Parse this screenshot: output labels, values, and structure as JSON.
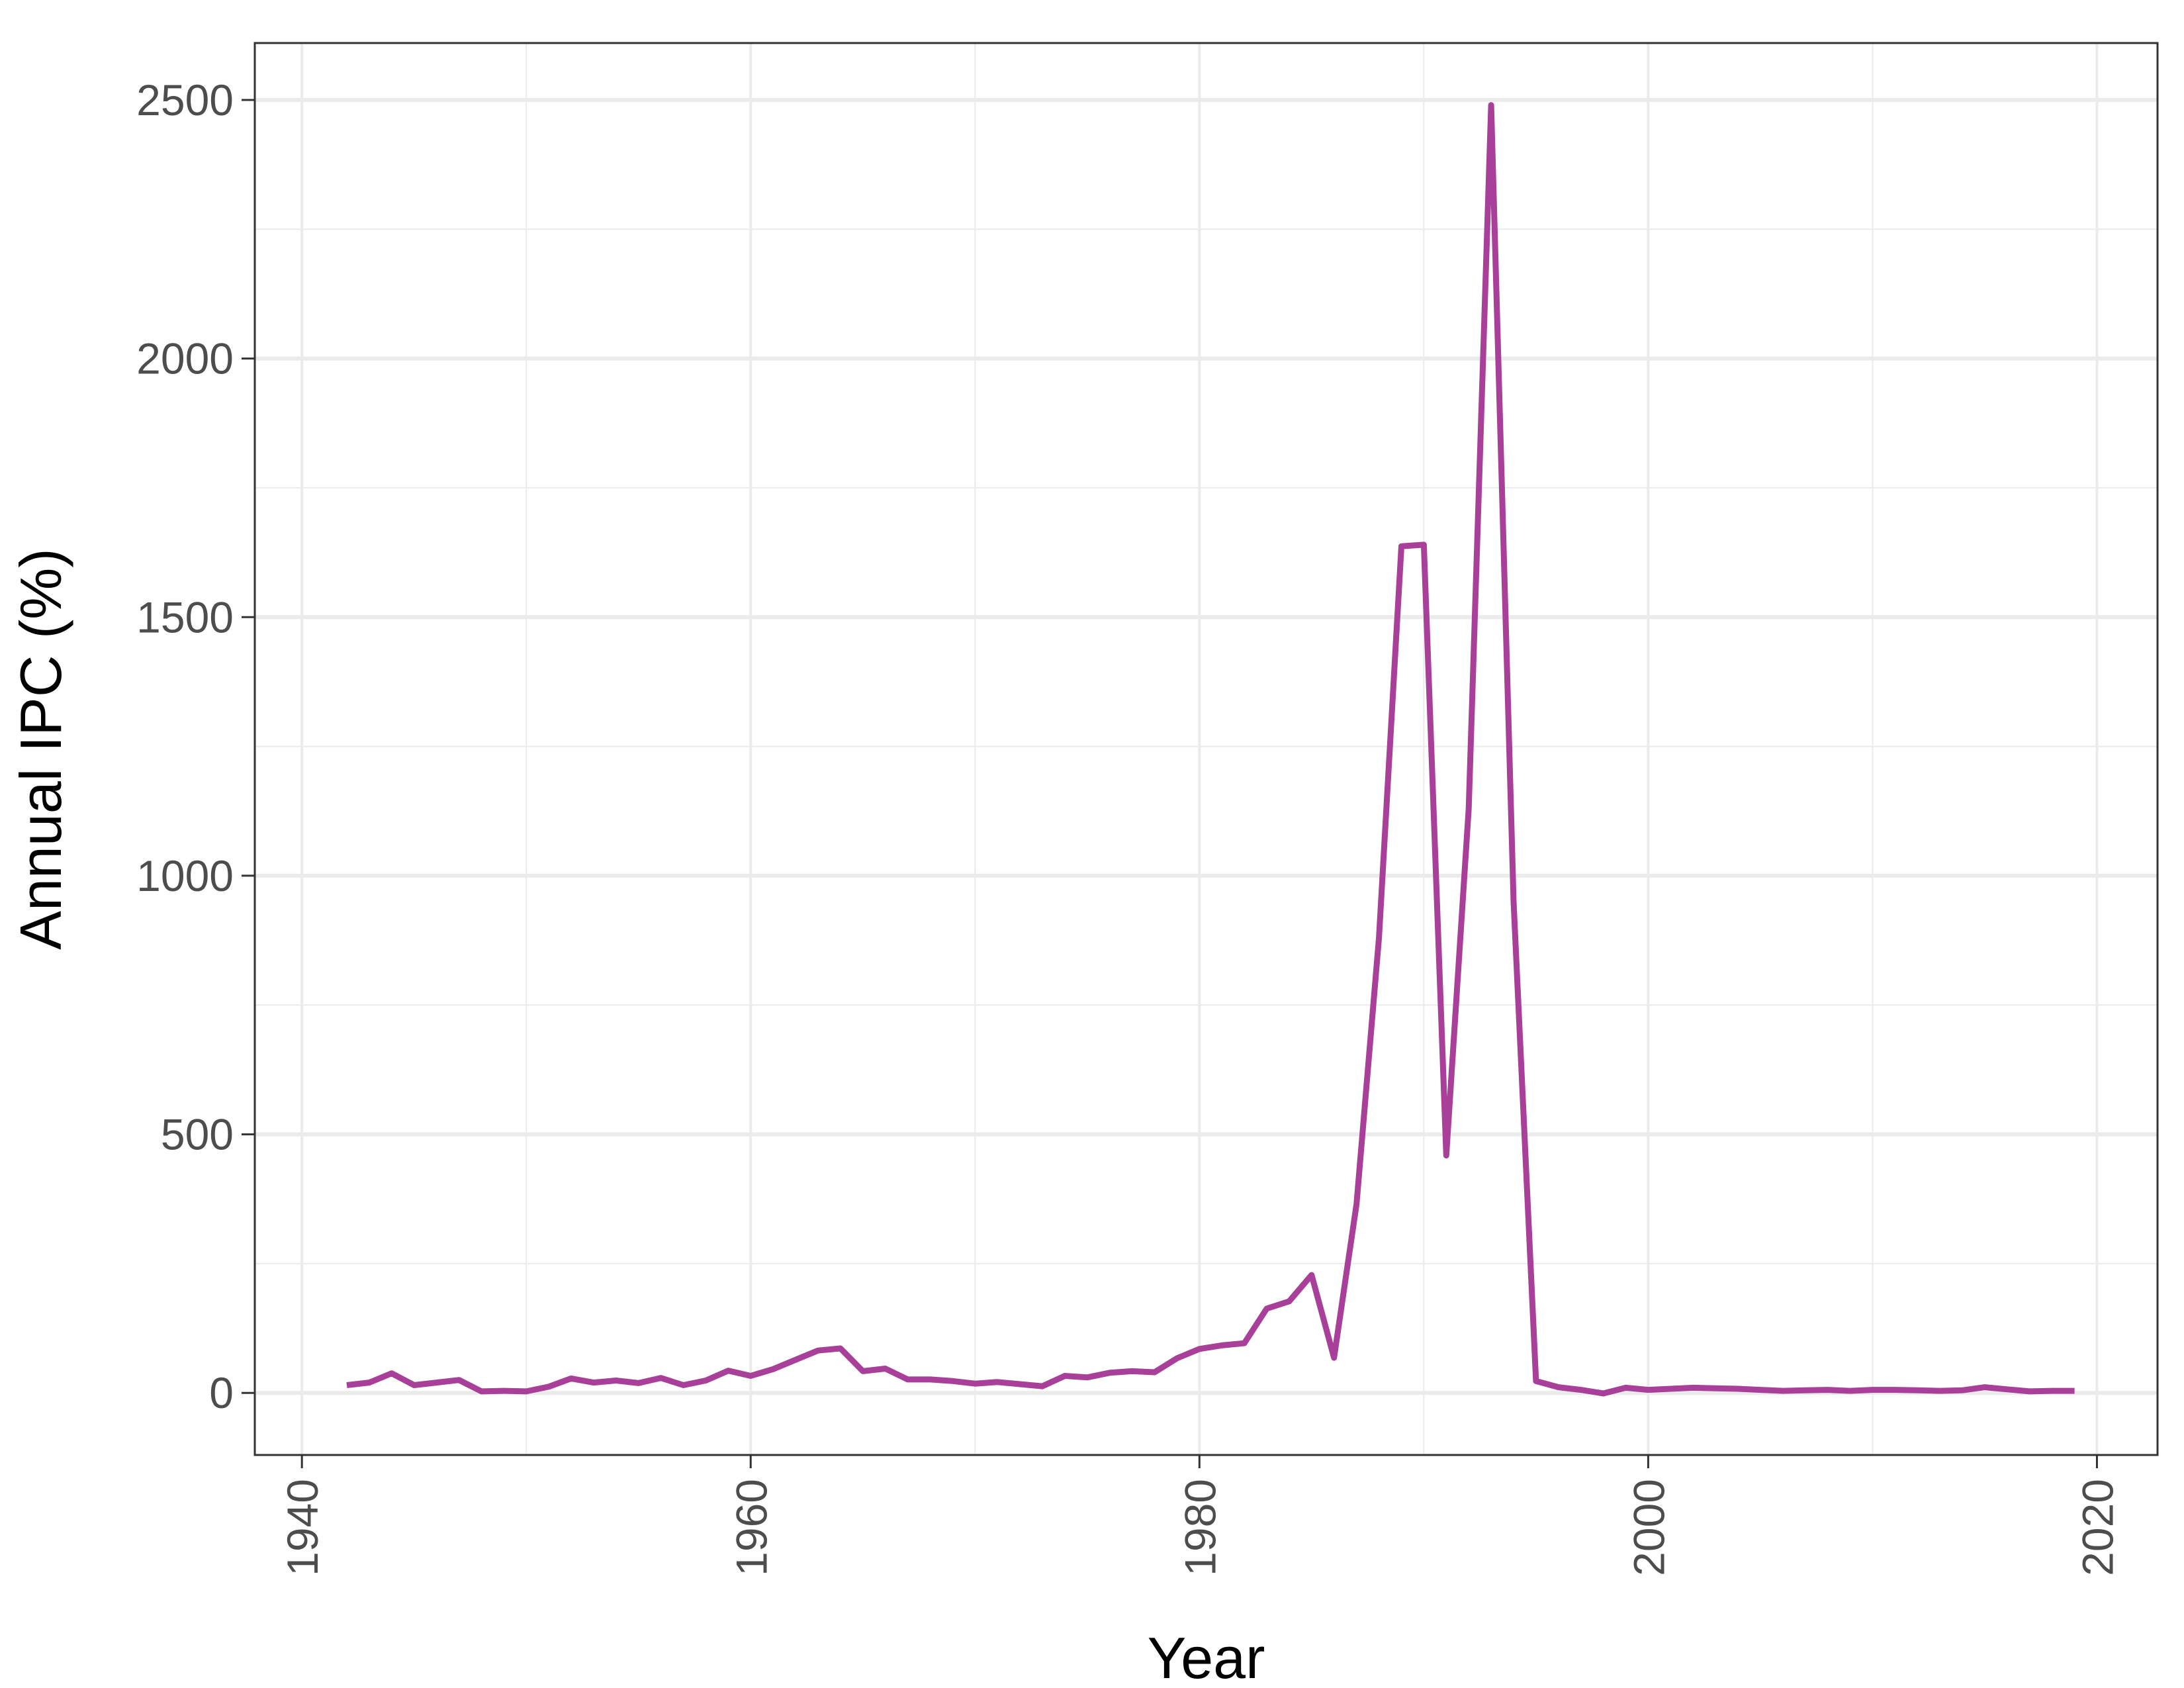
{
  "chart_data": {
    "type": "line",
    "title": "",
    "xlabel": "Year",
    "ylabel": "Annual IPC (%)",
    "xlim": [
      1937.9,
      2022.7
    ],
    "ylim": [
      -120,
      2610
    ],
    "x_ticks": [
      1940,
      1960,
      1980,
      2000,
      2020
    ],
    "y_ticks": [
      0,
      500,
      1000,
      1500,
      2000,
      2500
    ],
    "grid": true,
    "legend": "none",
    "series": [
      {
        "color": "#A8409A",
        "x": [
          1942,
          1943,
          1944,
          1945,
          1946,
          1947,
          1948,
          1949,
          1950,
          1951,
          1952,
          1953,
          1954,
          1955,
          1956,
          1957,
          1958,
          1959,
          1960,
          1961,
          1962,
          1963,
          1964,
          1965,
          1966,
          1967,
          1968,
          1969,
          1970,
          1971,
          1972,
          1973,
          1974,
          1975,
          1976,
          1977,
          1978,
          1979,
          1980,
          1981,
          1982,
          1983,
          1984,
          1985,
          1986,
          1987,
          1988,
          1989,
          1990,
          1991,
          1992,
          1993,
          1994,
          1995,
          1996,
          1997,
          1998,
          1999,
          2000,
          2001,
          2002,
          2003,
          2004,
          2005,
          2006,
          2007,
          2008,
          2009,
          2010,
          2011,
          2012,
          2013,
          2014,
          2015,
          2016,
          2017,
          2018,
          2019
        ],
        "y": [
          15,
          20,
          38,
          15,
          20,
          25,
          3,
          4,
          3,
          12,
          28,
          20,
          24,
          19,
          29,
          15,
          24,
          43,
          33,
          46,
          64,
          82,
          86,
          42,
          47,
          26,
          26,
          23,
          18,
          21,
          17,
          13,
          33,
          30,
          39,
          42,
          40,
          67,
          85,
          92,
          96,
          163,
          177,
          228,
          68,
          365,
          880,
          1637,
          1640,
          459,
          1130,
          2490,
          950,
          23,
          11,
          6,
          -1,
          10,
          6,
          8,
          10,
          9,
          8,
          6,
          4,
          5,
          6,
          4,
          6,
          6,
          5,
          4,
          5,
          11,
          7,
          3,
          4,
          4
        ]
      }
    ]
  }
}
